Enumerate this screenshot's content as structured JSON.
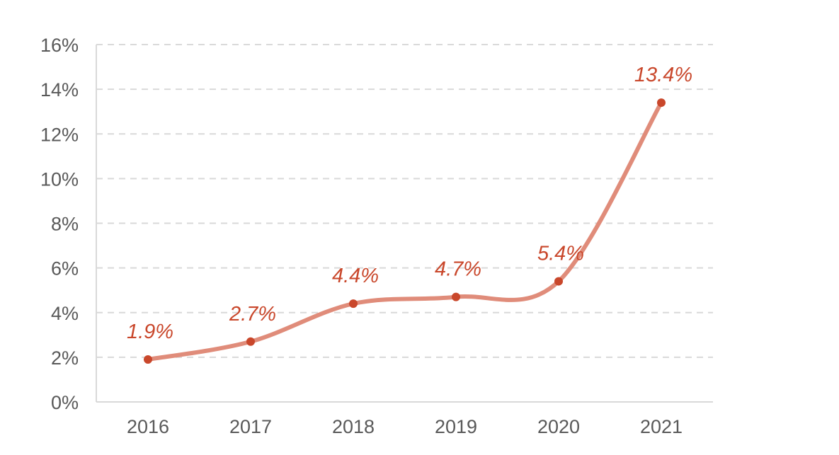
{
  "chart_data": {
    "type": "line",
    "title": "",
    "xlabel": "",
    "ylabel": "",
    "categories": [
      "2016",
      "2017",
      "2018",
      "2019",
      "2020",
      "2021"
    ],
    "series": [
      {
        "name": "",
        "values": [
          1.9,
          2.7,
          4.4,
          4.7,
          5.4,
          13.4
        ],
        "labels": [
          "1.9%",
          "2.7%",
          "4.4%",
          "4.7%",
          "5.4%",
          "13.4%"
        ]
      }
    ],
    "ylim": [
      0,
      16
    ],
    "yticks": [
      0,
      2,
      4,
      6,
      8,
      10,
      12,
      14,
      16
    ],
    "ytick_labels": [
      "0%",
      "2%",
      "4%",
      "6%",
      "8%",
      "10%",
      "12%",
      "14%",
      "16%"
    ],
    "grid": true,
    "smooth": true,
    "colors": {
      "line": "#e08c7a",
      "marker": "#c9472b",
      "label": "#c9472b",
      "grid": "#d9d9d9",
      "axis": "#d9d9d9"
    }
  }
}
